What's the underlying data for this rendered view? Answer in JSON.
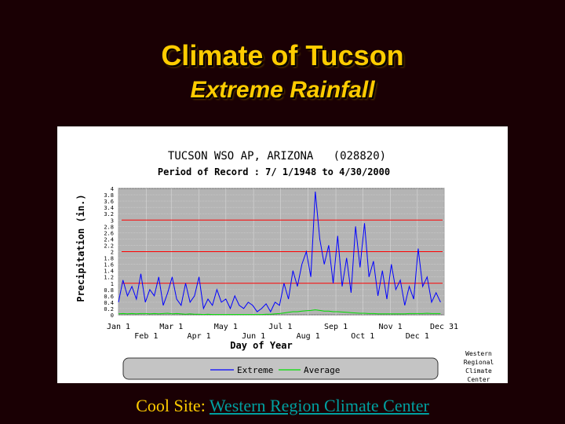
{
  "slide": {
    "title": "Climate of Tucson",
    "subtitle": "Extreme Rainfall",
    "footer_label": "Cool Site:",
    "footer_link": "Western Region Climate Center"
  },
  "colors": {
    "background": "#1a0004",
    "title": "#ffcc00",
    "link": "#00a0a0",
    "extreme": "#0000ff",
    "average": "#00dd00",
    "reference": "#ff0000",
    "plot_bg": "#b4b4b4"
  },
  "chart_data": {
    "type": "line",
    "title": "TUCSON WSO AP, ARIZONA   (028820)",
    "subtitle": "Period of Record : 7/ 1/1948 to 4/30/2000",
    "xlabel": "Day of Year",
    "ylabel": "Precipitation (in.)",
    "ylim": [
      0,
      4
    ],
    "xlim": [
      1,
      365
    ],
    "yticks": [
      "0",
      "0.2",
      "0.4",
      "0.6",
      "0.8",
      "1",
      "1.2",
      "1.4",
      "1.6",
      "1.8",
      "2",
      "2.2",
      "2.4",
      "2.6",
      "2.8",
      "3",
      "3.2",
      "3.4",
      "3.6",
      "3.8",
      "4"
    ],
    "xticks_top": [
      {
        "label": "Jan 1",
        "day": 1
      },
      {
        "label": "Mar 1",
        "day": 60
      },
      {
        "label": "May 1",
        "day": 121
      },
      {
        "label": "Jul 1",
        "day": 182
      },
      {
        "label": "Sep 1",
        "day": 244
      },
      {
        "label": "Nov 1",
        "day": 305
      },
      {
        "label": "Dec 31",
        "day": 365
      }
    ],
    "xticks_bottom": [
      {
        "label": "Feb 1",
        "day": 32
      },
      {
        "label": "Apr 1",
        "day": 91
      },
      {
        "label": "Jun 1",
        "day": 152
      },
      {
        "label": "Aug 1",
        "day": 213
      },
      {
        "label": "Oct 1",
        "day": 274
      },
      {
        "label": "Dec 1",
        "day": 335
      }
    ],
    "grid": true,
    "reference_lines": [
      1,
      2,
      3
    ],
    "legend_placement": "bottom",
    "series": [
      {
        "name": "Extreme",
        "x_step_days": 5,
        "values": [
          0.4,
          1.1,
          0.6,
          0.9,
          0.5,
          1.3,
          0.4,
          0.8,
          0.6,
          1.2,
          0.3,
          0.7,
          1.2,
          0.5,
          0.3,
          1.0,
          0.4,
          0.6,
          1.2,
          0.2,
          0.5,
          0.3,
          0.8,
          0.4,
          0.5,
          0.2,
          0.6,
          0.3,
          0.2,
          0.4,
          0.3,
          0.1,
          0.2,
          0.35,
          0.1,
          0.4,
          0.3,
          1.0,
          0.5,
          1.4,
          0.9,
          1.6,
          2.0,
          1.2,
          3.9,
          2.4,
          1.6,
          2.2,
          1.0,
          2.5,
          0.9,
          1.8,
          0.7,
          2.8,
          1.5,
          2.9,
          1.2,
          1.7,
          0.6,
          1.4,
          0.5,
          1.6,
          0.8,
          1.1,
          0.3,
          0.9,
          0.5,
          2.1,
          0.9,
          1.2,
          0.4,
          0.7,
          0.4
        ]
      },
      {
        "name": "Average",
        "x_step_days": 5,
        "values": [
          0.03,
          0.04,
          0.03,
          0.04,
          0.03,
          0.04,
          0.04,
          0.03,
          0.04,
          0.03,
          0.04,
          0.05,
          0.03,
          0.04,
          0.03,
          0.02,
          0.03,
          0.02,
          0.02,
          0.01,
          0.02,
          0.01,
          0.01,
          0.01,
          0.01,
          0.01,
          0.01,
          0.01,
          0.01,
          0.01,
          0.01,
          0.01,
          0.01,
          0.02,
          0.02,
          0.03,
          0.04,
          0.06,
          0.08,
          0.1,
          0.1,
          0.12,
          0.13,
          0.14,
          0.16,
          0.14,
          0.12,
          0.12,
          0.1,
          0.1,
          0.09,
          0.08,
          0.07,
          0.06,
          0.05,
          0.05,
          0.04,
          0.04,
          0.03,
          0.03,
          0.03,
          0.03,
          0.03,
          0.03,
          0.03,
          0.04,
          0.04,
          0.04,
          0.04,
          0.05,
          0.04,
          0.04,
          0.04
        ]
      }
    ],
    "credit": [
      "Western",
      "Regional",
      "Climate",
      "Center"
    ]
  }
}
